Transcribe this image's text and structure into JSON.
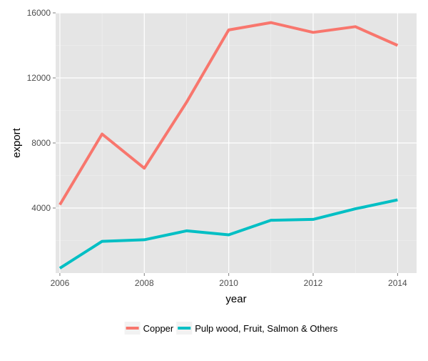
{
  "chart_data": {
    "type": "line",
    "title": "",
    "xlabel": "year",
    "ylabel": "export",
    "x": [
      2006,
      2007,
      2008,
      2009,
      2010,
      2011,
      2012,
      2013,
      2014
    ],
    "xlim": [
      2005.9,
      2014.45
    ],
    "ylim": [
      0,
      16000
    ],
    "xticks": [
      2006,
      2008,
      2010,
      2012,
      2014
    ],
    "yticks": [
      4000,
      8000,
      12000,
      16000
    ],
    "grid": true,
    "legend_position": "bottom",
    "series": [
      {
        "name": "Copper",
        "color": "#F8766D",
        "values": [
          4200,
          8550,
          6450,
          10500,
          14950,
          15400,
          14800,
          15150,
          14000
        ]
      },
      {
        "name": "Pulp wood, Fruit, Salmon & Others",
        "color": "#00BFC4",
        "values": [
          300,
          1950,
          2050,
          2600,
          2350,
          3250,
          3300,
          3950,
          4500
        ]
      }
    ]
  }
}
